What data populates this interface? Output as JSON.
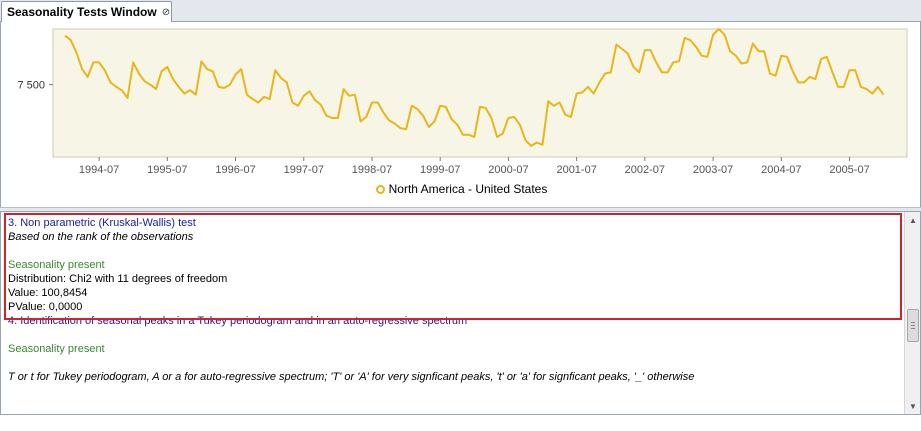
{
  "window": {
    "tab_title": "Seasonality Tests Window",
    "close_glyph": "⊘"
  },
  "chart_data": {
    "type": "line",
    "title": "",
    "xlabel": "",
    "ylabel": "",
    "x_ticks": [
      "1994-07",
      "1995-07",
      "1996-07",
      "1997-07",
      "1998-07",
      "1999-07",
      "2000-07",
      "2001-07",
      "2002-07",
      "2003-07",
      "2004-07",
      "2005-07"
    ],
    "y_ticks": [
      7500
    ],
    "y_tick_labels": [
      "7 500"
    ],
    "x_start": "1994-01",
    "x_end": "2006-03",
    "ylim": [
      6850,
      8000
    ],
    "grid": false,
    "legend_position": "bottom-center",
    "series": [
      {
        "name": "North America - United States",
        "color": "#e8b619",
        "values": [
          7940,
          7900,
          7790,
          7640,
          7570,
          7700,
          7700,
          7630,
          7520,
          7480,
          7450,
          7380,
          7700,
          7600,
          7530,
          7500,
          7460,
          7620,
          7660,
          7550,
          7480,
          7420,
          7450,
          7410,
          7710,
          7640,
          7620,
          7480,
          7470,
          7500,
          7590,
          7640,
          7410,
          7370,
          7340,
          7390,
          7370,
          7630,
          7560,
          7520,
          7340,
          7310,
          7400,
          7440,
          7360,
          7320,
          7220,
          7200,
          7200,
          7460,
          7400,
          7410,
          7170,
          7210,
          7340,
          7340,
          7250,
          7180,
          7150,
          7110,
          7100,
          7310,
          7280,
          7220,
          7120,
          7170,
          7310,
          7300,
          7190,
          7140,
          7050,
          7050,
          7030,
          7300,
          7290,
          7200,
          7030,
          7060,
          7200,
          7210,
          7140,
          7000,
          6950,
          6980,
          6960,
          7350,
          7310,
          7340,
          7230,
          7210,
          7420,
          7430,
          7480,
          7420,
          7520,
          7600,
          7610,
          7860,
          7820,
          7780,
          7660,
          7610,
          7810,
          7810,
          7700,
          7610,
          7610,
          7700,
          7710,
          7920,
          7900,
          7840,
          7760,
          7750,
          7950,
          8000,
          7950,
          7800,
          7760,
          7690,
          7700,
          7870,
          7800,
          7800,
          7600,
          7580,
          7760,
          7750,
          7620,
          7520,
          7520,
          7570,
          7550,
          7730,
          7750,
          7610,
          7480,
          7480,
          7630,
          7630,
          7480,
          7460,
          7420,
          7480,
          7410
        ]
      }
    ]
  },
  "legend": {
    "label": "North America - United States"
  },
  "results": {
    "test3_title": "3. Non parametric (Kruskal-Wallis) test",
    "test3_subtitle": "Based on the rank of the observations",
    "test3_status": "Seasonality present",
    "test3_distribution": "Distribution: Chi2 with 11 degrees of freedom",
    "test3_value": "Value: 100,8454",
    "test3_pvalue": "PValue: 0,0000",
    "test4_title": "4. Identification of seasonal peaks in a Tukey periodogram and in an auto-regressive spectrum",
    "test4_status": "Seasonality present",
    "test4_note": "T or t for Tukey periodogram, A or a for auto-regressive spectrum; 'T' or 'A' for very signficant peaks, 't' or 'a' for signficant peaks, '_' otherwise"
  },
  "scrollbar": {
    "up_glyph": "▲",
    "down_glyph": "▼"
  }
}
